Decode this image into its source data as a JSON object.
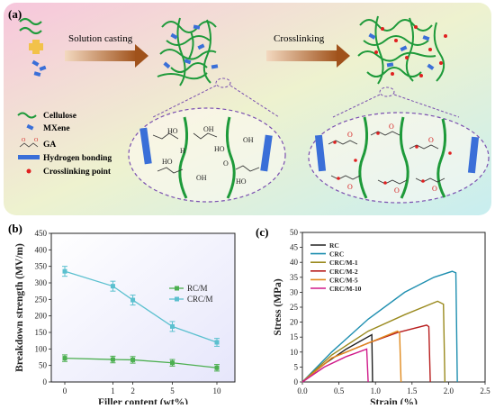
{
  "panels": {
    "a": {
      "label": "(a)",
      "steps": [
        "Solution casting",
        "Crosslinking"
      ],
      "legend": [
        {
          "icon": "cellulose-chain-icon",
          "text": "Cellulose"
        },
        {
          "icon": "mxene-flake-icon",
          "text": "MXene"
        },
        {
          "icon": "ga-molecule-icon",
          "text": "GA"
        },
        {
          "icon": "hydrogen-bond-icon",
          "text": "Hydrogen bonding"
        },
        {
          "icon": "crosslink-point-icon",
          "text": "Crosslinking point"
        }
      ],
      "chem_labels": {
        "ho": "HO",
        "oh": "OH",
        "h": "H",
        "o": "O"
      }
    },
    "b": {
      "label": "(b)"
    },
    "c": {
      "label": "(c)"
    }
  },
  "colors": {
    "cellulose": "#1e9a3a",
    "mxene": "#3a6fd8",
    "crosslink": "#e02020",
    "arrow": "#b5651d",
    "bg_gradient": [
      "#f7c6dc",
      "#e6f0c8",
      "#c8eef0"
    ]
  },
  "chart_data": [
    {
      "type": "line",
      "xlabel": "Filler content (wt%)",
      "ylabel": "Breakdown strength (MV/m)",
      "x": [
        0,
        1,
        2,
        5,
        10
      ],
      "xticks": [
        "0",
        "1",
        "2",
        "5",
        "10"
      ],
      "xscale": "sqrt-like",
      "ylim": [
        0,
        450
      ],
      "yticks": [
        0,
        50,
        100,
        150,
        200,
        250,
        300,
        350,
        400,
        450
      ],
      "legend_position": "right",
      "series": [
        {
          "name": "RC/M",
          "color": "#4caf50",
          "values": [
            72,
            68,
            67,
            58,
            43
          ],
          "errors": [
            10,
            10,
            10,
            10,
            10
          ]
        },
        {
          "name": "CRC/M",
          "color": "#5bc0cf",
          "values": [
            335,
            290,
            248,
            168,
            120
          ],
          "errors": [
            15,
            15,
            15,
            15,
            12
          ]
        }
      ]
    },
    {
      "type": "line",
      "xlabel": "Strain (%)",
      "ylabel": "Stress (MPa)",
      "xlim": [
        0,
        2.5
      ],
      "ylim": [
        0,
        50
      ],
      "xticks": [
        "0.0",
        "0.5",
        "1.0",
        "1.5",
        "2.0",
        "2.5"
      ],
      "yticks": [
        "0",
        "5",
        "10",
        "15",
        "20",
        "25",
        "30",
        "35",
        "40",
        "45",
        "50"
      ],
      "legend_position": "top-left",
      "series": [
        {
          "name": "RC",
          "color": "#222222",
          "points": [
            [
              0,
              0
            ],
            [
              0.3,
              6
            ],
            [
              0.6,
              11
            ],
            [
              0.95,
              15.8
            ],
            [
              0.96,
              0
            ]
          ]
        },
        {
          "name": "CRC",
          "color": "#1f8fb0",
          "points": [
            [
              0,
              0
            ],
            [
              0.4,
              10
            ],
            [
              0.9,
              21
            ],
            [
              1.4,
              30
            ],
            [
              1.8,
              35
            ],
            [
              2.05,
              37
            ],
            [
              2.1,
              36.5
            ],
            [
              2.12,
              0
            ]
          ]
        },
        {
          "name": "CRC/M-1",
          "color": "#9a8a1e",
          "points": [
            [
              0,
              0
            ],
            [
              0.4,
              9
            ],
            [
              0.9,
              17
            ],
            [
              1.4,
              22.5
            ],
            [
              1.85,
              27
            ],
            [
              1.93,
              26
            ],
            [
              1.95,
              0
            ]
          ]
        },
        {
          "name": "CRC/M-2",
          "color": "#b81e1e",
          "points": [
            [
              0,
              0
            ],
            [
              0.4,
              8
            ],
            [
              0.9,
              13
            ],
            [
              1.3,
              16.5
            ],
            [
              1.7,
              19
            ],
            [
              1.73,
              18.5
            ],
            [
              1.75,
              0
            ]
          ]
        },
        {
          "name": "CRC/M-5",
          "color": "#e08a1e",
          "points": [
            [
              0,
              0
            ],
            [
              0.4,
              8
            ],
            [
              0.8,
              12
            ],
            [
              1.3,
              17
            ],
            [
              1.33,
              16.5
            ],
            [
              1.35,
              0
            ]
          ]
        },
        {
          "name": "CRC/M-10",
          "color": "#d01a8a",
          "points": [
            [
              0,
              0
            ],
            [
              0.3,
              5
            ],
            [
              0.6,
              8.5
            ],
            [
              0.88,
              11
            ],
            [
              0.9,
              0
            ]
          ]
        }
      ]
    }
  ]
}
